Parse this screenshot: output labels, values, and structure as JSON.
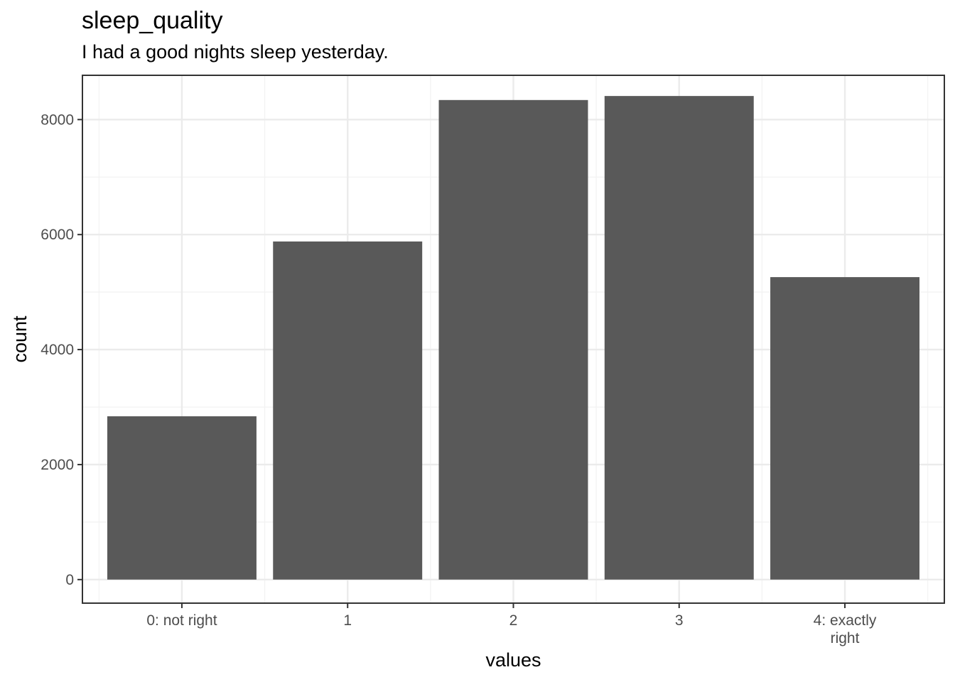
{
  "title": "sleep_quality",
  "subtitle": "I had a good nights sleep yesterday.",
  "chart_data": {
    "type": "bar",
    "categories": [
      "0: not right",
      "1",
      "2",
      "3",
      "4: exactly right"
    ],
    "category_lines": [
      [
        "0: not right"
      ],
      [
        "1"
      ],
      [
        "2"
      ],
      [
        "3"
      ],
      [
        "4: exactly",
        "right"
      ]
    ],
    "values": [
      2840,
      5880,
      8340,
      8410,
      5260
    ],
    "xlabel": "values",
    "ylabel": "count",
    "ylim": [
      -410,
      8770
    ],
    "yticks": [
      0,
      2000,
      4000,
      6000,
      8000
    ],
    "grid": true,
    "bar_color": "#595959"
  }
}
